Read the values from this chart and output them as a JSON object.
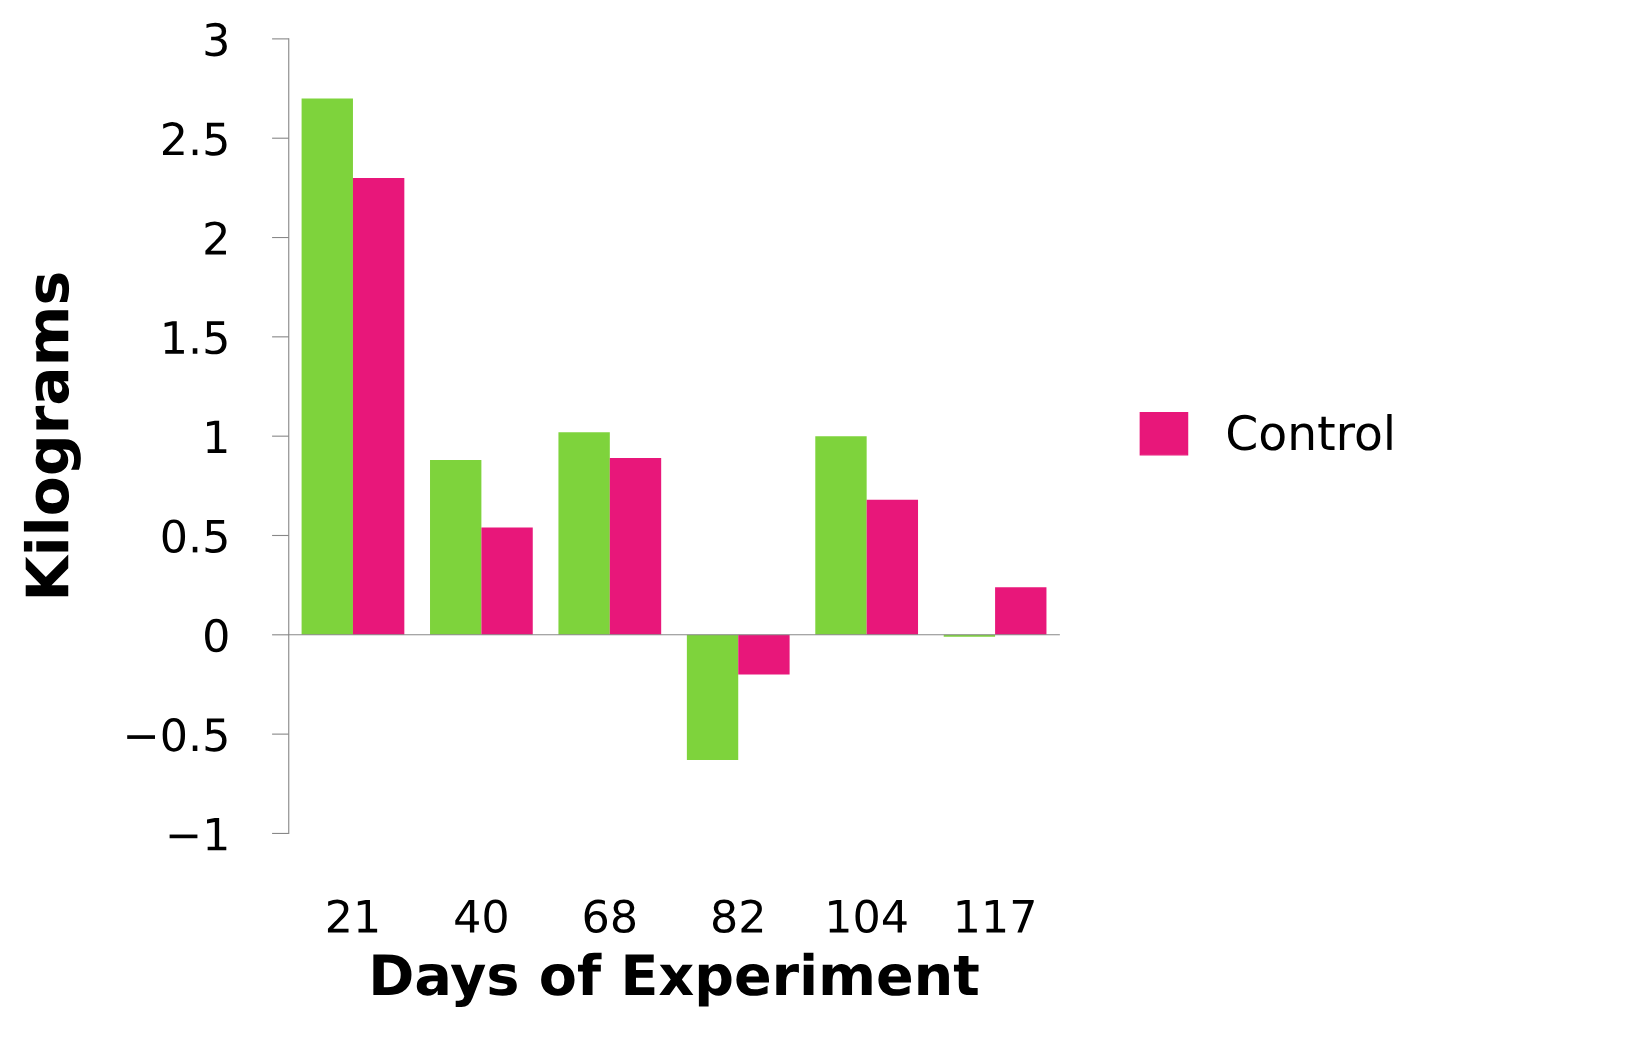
{
  "chart_data": {
    "type": "bar",
    "xlabel": "Days of Experiment",
    "ylabel": "Kilograms",
    "categories": [
      "21",
      "40",
      "68",
      "82",
      "104",
      "117"
    ],
    "series": [
      {
        "color": "#7ed33c",
        "values": [
          2.7,
          0.88,
          1.02,
          -0.63,
          1.0,
          -0.01
        ]
      },
      {
        "name": "Control",
        "color": "#e8177a",
        "values": [
          2.3,
          0.54,
          0.89,
          -0.2,
          0.68,
          0.24
        ]
      }
    ],
    "ylim": [
      -1,
      3
    ],
    "yticks": [
      {
        "value": -1,
        "label": "−1"
      },
      {
        "value": -0.5,
        "label": "−0.5"
      },
      0,
      0.5,
      1,
      1.5,
      2,
      2.5,
      3
    ],
    "legend": "right"
  }
}
